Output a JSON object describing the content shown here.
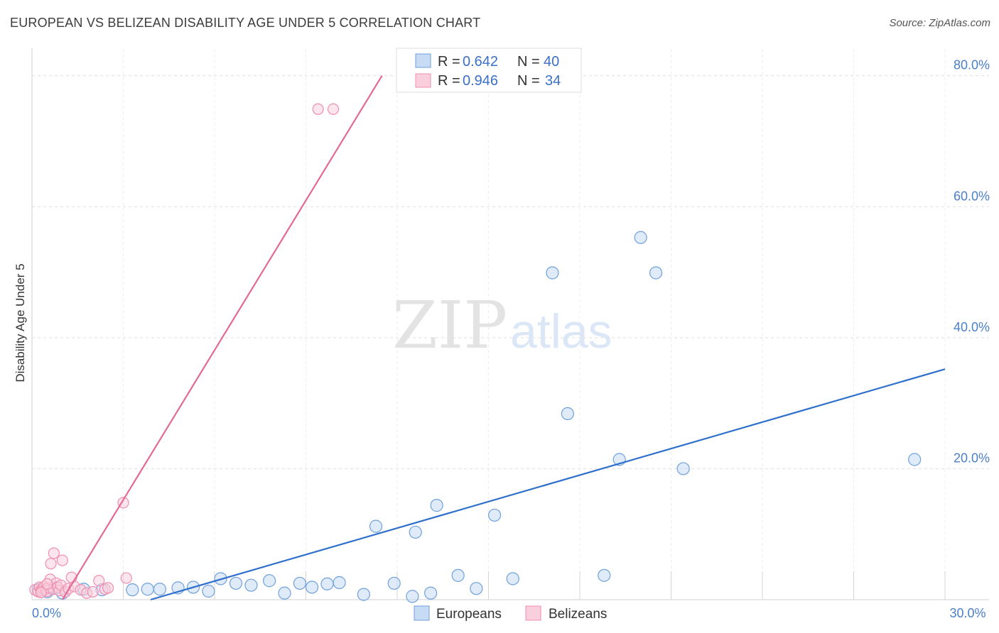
{
  "header": {
    "title": "EUROPEAN VS BELIZEAN DISABILITY AGE UNDER 5 CORRELATION CHART",
    "source": "Source: ZipAtlas.com"
  },
  "watermark": {
    "zip": "ZIP",
    "atlas": "atlas"
  },
  "colors": {
    "europeans": "#6fa0dc",
    "europeans_line": "#2e6fcc",
    "belizeans": "#ef8fb0",
    "belizeans_line": "#e26a95",
    "tick": "#4a7fc9"
  },
  "legend": {
    "europeans": {
      "r_label": "R = ",
      "r_value": "0.642",
      "n_label": "N = ",
      "n_value": "40"
    },
    "belizeans": {
      "r_label": "R = ",
      "r_value": "0.946",
      "n_label": "N = ",
      "n_value": "34"
    }
  },
  "chart_data": {
    "type": "scatter",
    "title": "EUROPEAN VS BELIZEAN DISABILITY AGE UNDER 5 CORRELATION CHART",
    "xlabel": "",
    "ylabel": "Disability Age Under 5",
    "xlim": [
      0,
      30
    ],
    "ylim": [
      0,
      83
    ],
    "x_ticks": [
      {
        "value": 0,
        "label": "0.0%"
      },
      {
        "value": 30,
        "label": "30.0%"
      }
    ],
    "y_ticks": [
      {
        "value": 20,
        "label": "20.0%"
      },
      {
        "value": 40,
        "label": "40.0%"
      },
      {
        "value": 60,
        "label": "60.0%"
      },
      {
        "value": 80,
        "label": "80.0%"
      }
    ],
    "grid": true,
    "legend_position": "top-center",
    "series": [
      {
        "name": "Europeans",
        "color": "#6fa0dc",
        "points": [
          [
            0.2,
            1.5
          ],
          [
            0.5,
            1.2
          ],
          [
            0.8,
            1.8
          ],
          [
            1.0,
            1.0
          ],
          [
            1.7,
            1.6
          ],
          [
            2.3,
            1.5
          ],
          [
            3.3,
            1.5
          ],
          [
            3.8,
            1.6
          ],
          [
            4.2,
            1.6
          ],
          [
            4.8,
            1.8
          ],
          [
            5.3,
            1.9
          ],
          [
            5.8,
            1.3
          ],
          [
            6.2,
            3.2
          ],
          [
            6.7,
            2.5
          ],
          [
            7.2,
            2.2
          ],
          [
            7.8,
            2.9
          ],
          [
            8.3,
            1.0
          ],
          [
            8.8,
            2.5
          ],
          [
            9.2,
            1.9
          ],
          [
            9.7,
            2.4
          ],
          [
            10.1,
            2.6
          ],
          [
            10.9,
            0.8
          ],
          [
            11.3,
            11.2
          ],
          [
            11.9,
            2.5
          ],
          [
            12.5,
            0.5
          ],
          [
            12.6,
            10.3
          ],
          [
            13.1,
            1.0
          ],
          [
            13.3,
            14.4
          ],
          [
            14.0,
            3.7
          ],
          [
            14.6,
            1.7
          ],
          [
            15.2,
            12.9
          ],
          [
            15.8,
            3.2
          ],
          [
            17.1,
            49.9
          ],
          [
            17.6,
            28.4
          ],
          [
            18.8,
            3.7
          ],
          [
            19.3,
            21.4
          ],
          [
            20.0,
            55.3
          ],
          [
            20.5,
            49.9
          ],
          [
            21.4,
            20.0
          ],
          [
            29.0,
            21.4
          ]
        ],
        "trendline": {
          "x": [
            3.9,
            30.0
          ],
          "y": [
            0.0,
            35.2
          ]
        }
      },
      {
        "name": "Belizeans",
        "color": "#ef8fb0",
        "points": [
          [
            0.1,
            1.5
          ],
          [
            0.2,
            1.2
          ],
          [
            0.25,
            1.9
          ],
          [
            0.3,
            1.4
          ],
          [
            0.35,
            1.7
          ],
          [
            0.4,
            2.0
          ],
          [
            0.45,
            1.6
          ],
          [
            0.5,
            1.3
          ],
          [
            0.55,
            1.8
          ],
          [
            0.6,
            3.1
          ],
          [
            0.62,
            5.5
          ],
          [
            0.7,
            1.6
          ],
          [
            0.72,
            7.1
          ],
          [
            0.8,
            2.5
          ],
          [
            0.85,
            1.9
          ],
          [
            0.9,
            1.4
          ],
          [
            0.95,
            2.2
          ],
          [
            1.0,
            6.0
          ],
          [
            1.1,
            1.2
          ],
          [
            1.2,
            1.7
          ],
          [
            1.3,
            3.4
          ],
          [
            1.4,
            2.0
          ],
          [
            1.6,
            1.5
          ],
          [
            1.8,
            1.0
          ],
          [
            2.0,
            1.2
          ],
          [
            2.2,
            2.9
          ],
          [
            2.4,
            1.6
          ],
          [
            2.5,
            1.8
          ],
          [
            3.0,
            14.8
          ],
          [
            3.1,
            3.3
          ],
          [
            9.4,
            74.9
          ],
          [
            9.9,
            74.9
          ],
          [
            0.3,
            1.1
          ],
          [
            0.5,
            2.4
          ]
        ],
        "trendline": {
          "x": [
            1.0,
            11.5
          ],
          "y": [
            0.0,
            80.0
          ]
        }
      }
    ]
  },
  "bottom_legend": {
    "europeans": "Europeans",
    "belizeans": "Belizeans"
  }
}
